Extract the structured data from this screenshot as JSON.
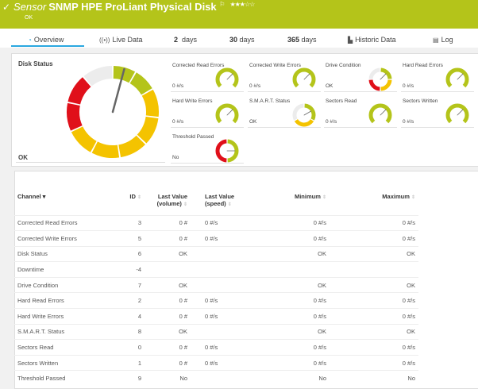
{
  "header": {
    "prefix": "Sensor",
    "title": "SNMP HPE ProLiant Physical Disk",
    "flag": "⚐",
    "stars": "★★★☆☆",
    "rating": 3,
    "status": "OK",
    "color": "#b4c41a"
  },
  "tabs": [
    {
      "icon": "◔",
      "label": "Overview"
    },
    {
      "icon": "((•))",
      "label": "Live Data"
    },
    {
      "num": "2",
      "label": "days"
    },
    {
      "num": "30",
      "label": "days"
    },
    {
      "num": "365",
      "label": "days"
    },
    {
      "icon": "▙",
      "label": "Historic Data"
    },
    {
      "icon": "▤",
      "label": "Log"
    }
  ],
  "main_gauge": {
    "title": "Disk Status",
    "value": "OK"
  },
  "gauges": [
    {
      "name": "Corrected Read Errors",
      "value": "0 #/s",
      "style": "rate"
    },
    {
      "name": "Corrected Write Errors",
      "value": "0 #/s",
      "style": "rate"
    },
    {
      "name": "Drive Condition",
      "value": "OK",
      "style": "condition"
    },
    {
      "name": "Hard Read Errors",
      "value": "0 #/s",
      "style": "rate"
    },
    {
      "name": "Hard Write Errors",
      "value": "0 #/s",
      "style": "rate"
    },
    {
      "name": "S.M.A.R.T. Status",
      "value": "OK",
      "style": "smart"
    },
    {
      "name": "Sectors Read",
      "value": "0 #/s",
      "style": "rate"
    },
    {
      "name": "Sectors Written",
      "value": "0 #/s",
      "style": "rate"
    },
    {
      "name": "Threshold Passed",
      "value": "No",
      "style": "boolean"
    }
  ],
  "table": {
    "headers": [
      "Channel ▾",
      "ID",
      "Last Value (volume)",
      "Last Value (speed)",
      "Minimum",
      "Maximum"
    ],
    "rows": [
      [
        "Corrected Read Errors",
        "3",
        "0 #",
        "0 #/s",
        "0 #/s",
        "0 #/s"
      ],
      [
        "Corrected Write Errors",
        "5",
        "0 #",
        "0 #/s",
        "0 #/s",
        "0 #/s"
      ],
      [
        "Disk Status",
        "6",
        "OK",
        "",
        "OK",
        "OK"
      ],
      [
        "Downtime",
        "-4",
        "",
        "",
        "",
        ""
      ],
      [
        "Drive Condition",
        "7",
        "OK",
        "",
        "OK",
        "OK"
      ],
      [
        "Hard Read Errors",
        "2",
        "0 #",
        "0 #/s",
        "0 #/s",
        "0 #/s"
      ],
      [
        "Hard Write Errors",
        "4",
        "0 #",
        "0 #/s",
        "0 #/s",
        "0 #/s"
      ],
      [
        "S.M.A.R.T. Status",
        "8",
        "OK",
        "",
        "OK",
        "OK"
      ],
      [
        "Sectors Read",
        "0",
        "0 #",
        "0 #/s",
        "0 #/s",
        "0 #/s"
      ],
      [
        "Sectors Written",
        "1",
        "0 #",
        "0 #/s",
        "0 #/s",
        "0 #/s"
      ],
      [
        "Threshold Passed",
        "9",
        "No",
        "",
        "No",
        "No"
      ]
    ]
  },
  "colors": {
    "green": "#b4c41a",
    "yellow": "#f4c300",
    "red": "#e0101a",
    "gray": "#ececec",
    "accent": "#2aa8e0"
  }
}
